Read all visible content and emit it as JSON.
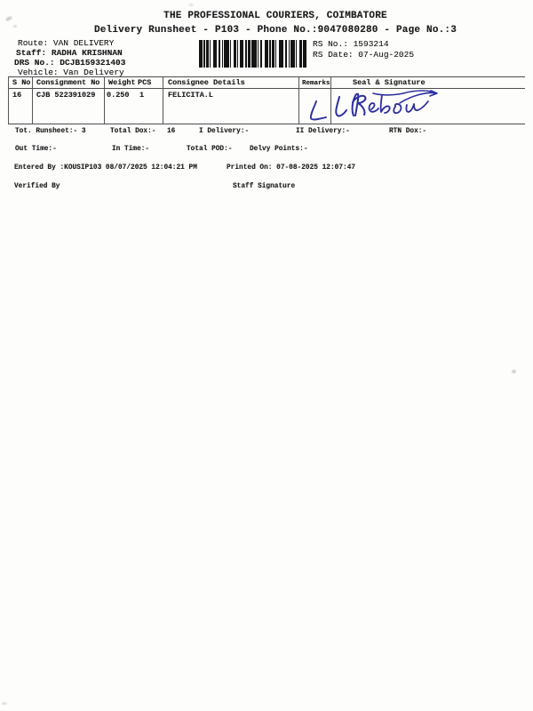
{
  "colors": {
    "ink": "#1c1c1c",
    "table_line": "#4d4d4d",
    "signature_blue": "#2d2f9d",
    "paper": "#fdfdfc"
  },
  "header": {
    "company": "THE PROFESSIONAL COURIERS, COIMBATORE",
    "subtitle": "Delivery Runsheet - P103 - Phone No.:9047080280 - Page No.:3",
    "route": "Route: VAN DELIVERY",
    "staff": "Staff: RADHA KRISHNAN",
    "drs_no": "DRS No.: DCJB159321403",
    "vehicle": "Vehicle: Van Delivery",
    "rs_no": "RS No.: 1593214",
    "rs_date": "RS Date: 07-Aug-2025"
  },
  "barcode": {
    "icon": "barcode-icon",
    "pattern": [
      3,
      1,
      1,
      1,
      2,
      1,
      1,
      2,
      3,
      1,
      2,
      1,
      1,
      1,
      4,
      1,
      1,
      2,
      2,
      1,
      1,
      1,
      3,
      2,
      1,
      1,
      2,
      1,
      4,
      1,
      1,
      1,
      2,
      2,
      3,
      1,
      1,
      1,
      2,
      1,
      1,
      2,
      4,
      1,
      2,
      1,
      1,
      1,
      3,
      1,
      1,
      2,
      2,
      1,
      3
    ]
  },
  "table": {
    "headers": {
      "s_no": "S No",
      "consignment_no": "Consignment No",
      "weight": "Weight",
      "pcs": "PCS",
      "consignee": "Consignee Details",
      "remarks": "Remarks",
      "seal_signature": "Seal & Signature"
    },
    "rows": [
      {
        "s_no": "16",
        "consignment_no": "CJB 522391029",
        "weight": "0.250",
        "pcs": "1",
        "consignee": "FELICITA.L",
        "remarks": "",
        "seal_signature_icon": "handwritten-signature"
      }
    ]
  },
  "summary": {
    "tot_runsheet": "Tot. Runsheet:- 3",
    "total_dox": "Total Dox:-",
    "total_dox_value": "16",
    "i_delivery": "I Delivery:-",
    "ii_delivery": "II Delivery:-",
    "rtn_dox": "RTN Dox:-"
  },
  "times": {
    "out_time": "Out Time:-",
    "in_time": "In Time:-",
    "total_pod": "Total POD:-",
    "delvy_points": "Delvy Points:-"
  },
  "footer": {
    "entered_by": "Entered By :KOUSIP103 08/07/2025 12:04:21 PM",
    "printed_on": "Printed On: 07-08-2025 12:07:47",
    "verified_by": "Verified By",
    "staff_signature": "Staff Signature"
  }
}
